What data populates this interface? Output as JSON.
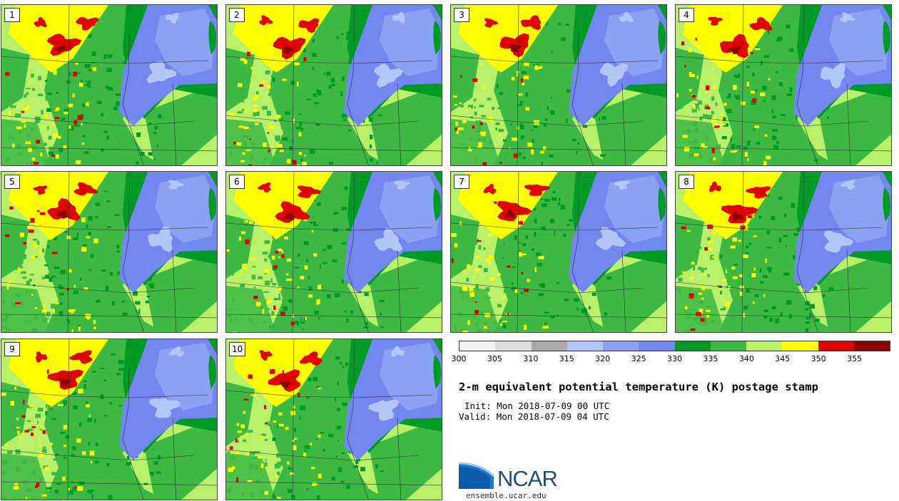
{
  "panels": [
    {
      "label": "1"
    },
    {
      "label": "2"
    },
    {
      "label": "3"
    },
    {
      "label": "4"
    },
    {
      "label": "5"
    },
    {
      "label": "6"
    },
    {
      "label": "7"
    },
    {
      "label": "8"
    },
    {
      "label": "9"
    },
    {
      "label": "10"
    }
  ],
  "colorbar": {
    "colors": [
      "#f2f2f2",
      "#dcdcdc",
      "#a9a9a9",
      "#b4c5f7",
      "#8aa2f2",
      "#7287ef",
      "#009a26",
      "#3cb843",
      "#b8f06a",
      "#ffff00",
      "#e00000",
      "#8b0000"
    ],
    "ticks": [
      "300",
      "305",
      "310",
      "315",
      "320",
      "325",
      "330",
      "335",
      "340",
      "345",
      "350",
      "355"
    ]
  },
  "title": "2-m equivalent potential temperature (K) postage stamp",
  "init": "Init: Mon 2018-07-09 00 UTC",
  "valid": "Valid: Mon 2018-07-09 04 UTC",
  "logo": {
    "text": "NCAR",
    "url": "ensemble.ucar.edu"
  }
}
